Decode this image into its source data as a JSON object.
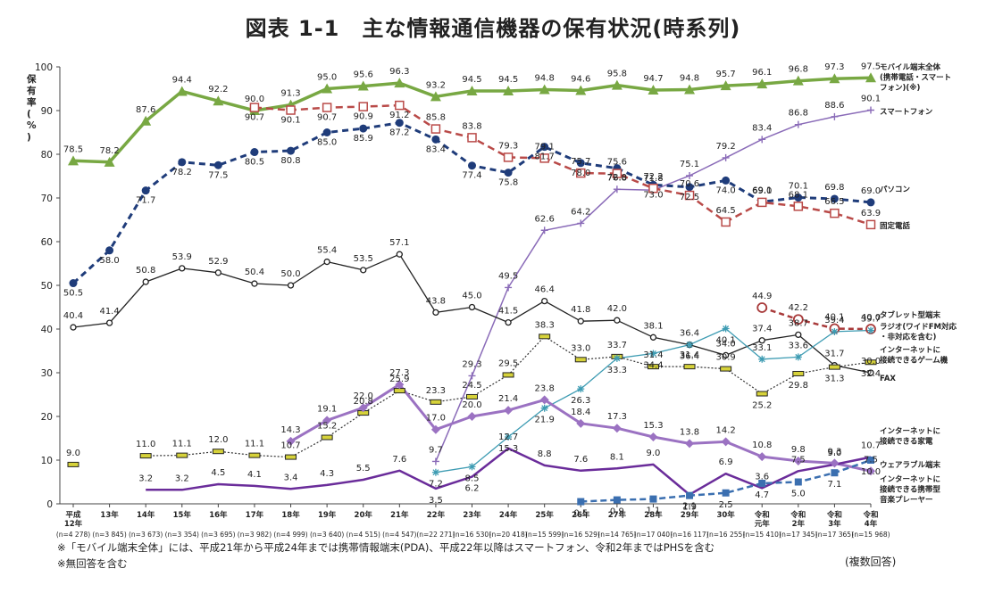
{
  "title": "図表 1-1　主な情報通信機器の保有状況(時系列)",
  "notes": [
    "※「モバイル端末全体」には、平成21年から平成24年までは携帯情報端末(PDA)、平成22年以降はスマートフォン、令和2年まではPHSを含む",
    "※無回答を含む"
  ],
  "multi_answer": "(複数回答)",
  "chart_data": {
    "type": "line",
    "ylabel": "保有率(%)",
    "ylim": [
      0,
      100
    ],
    "yticks": [
      0,
      10,
      20,
      30,
      40,
      50,
      60,
      70,
      80,
      90,
      100
    ],
    "grid": false,
    "legend": "inline-right",
    "categories": [
      {
        "year": [
          "平成",
          "12年"
        ],
        "n": "(n=4 278)"
      },
      {
        "year": [
          "13年"
        ],
        "n": "(n=3 845)"
      },
      {
        "year": [
          "14年"
        ],
        "n": "(n=3 673)"
      },
      {
        "year": [
          "15年"
        ],
        "n": "(n=3 354)"
      },
      {
        "year": [
          "16年"
        ],
        "n": "(n=3 695)"
      },
      {
        "year": [
          "17年"
        ],
        "n": "(n=3 982)"
      },
      {
        "year": [
          "18年"
        ],
        "n": "(n=4 999)"
      },
      {
        "year": [
          "19年"
        ],
        "n": "(n=3 640)"
      },
      {
        "year": [
          "20年"
        ],
        "n": "(n=4 515)"
      },
      {
        "year": [
          "21年"
        ],
        "n": "(n=4 547)"
      },
      {
        "year": [
          "22年"
        ],
        "n": "(n=22 271)"
      },
      {
        "year": [
          "23年"
        ],
        "n": "(n=16 530)"
      },
      {
        "year": [
          "24年"
        ],
        "n": "(n=20 418)"
      },
      {
        "year": [
          "25年"
        ],
        "n": "(n=15 599)"
      },
      {
        "year": [
          "26年"
        ],
        "n": "(n=16 529)"
      },
      {
        "year": [
          "27年"
        ],
        "n": "(n=14 765)"
      },
      {
        "year": [
          "28年"
        ],
        "n": "(n=17 040)"
      },
      {
        "year": [
          "29年"
        ],
        "n": "(n=16 117)"
      },
      {
        "year": [
          "30年"
        ],
        "n": "(n=16 255)"
      },
      {
        "year": [
          "令和",
          "元年"
        ],
        "n": "(n=15 410)"
      },
      {
        "year": [
          "令和",
          "2年"
        ],
        "n": "(n=17 345)"
      },
      {
        "year": [
          "令和",
          "3年"
        ],
        "n": "(n=17 365)"
      },
      {
        "year": [
          "令和",
          "4年"
        ],
        "n": "(n=15 968)"
      }
    ],
    "series": [
      {
        "name": [
          "モバイル端末全体",
          "(携帯電話・スマート",
          "フォン)(※)"
        ],
        "color": "#78a843",
        "dash": "",
        "width": 3.5,
        "marker": "triangle",
        "values": [
          78.5,
          78.2,
          87.6,
          94.4,
          92.2,
          90.0,
          91.3,
          95.0,
          95.6,
          96.3,
          93.2,
          94.5,
          94.5,
          94.8,
          94.6,
          95.8,
          94.7,
          94.8,
          95.7,
          96.1,
          96.8,
          97.3,
          97.5
        ]
      },
      {
        "name": [
          "スマートフォン"
        ],
        "color": "#8a6bb8",
        "dash": "",
        "width": 1.5,
        "marker": "plus",
        "values": [
          null,
          null,
          null,
          null,
          null,
          null,
          null,
          null,
          null,
          null,
          9.7,
          29.3,
          49.5,
          62.6,
          64.2,
          72.0,
          71.8,
          75.1,
          79.2,
          83.4,
          86.8,
          88.6,
          90.1
        ]
      },
      {
        "name": [
          "パソコン"
        ],
        "color": "#1f3c7a",
        "dash": "7 5",
        "width": 3,
        "marker": "dot",
        "values": [
          50.5,
          58.0,
          71.7,
          78.2,
          77.5,
          80.5,
          80.8,
          85.0,
          85.9,
          87.2,
          83.4,
          77.4,
          75.8,
          81.7,
          78.0,
          76.8,
          73.0,
          72.5,
          74.0,
          69.1,
          70.1,
          69.8,
          69.0
        ]
      },
      {
        "name": [
          "固定電話"
        ],
        "color": "#b94a48",
        "dash": "8 5",
        "width": 2.5,
        "marker": "square",
        "values": [
          null,
          null,
          null,
          null,
          null,
          90.7,
          90.1,
          90.7,
          90.9,
          91.2,
          85.8,
          83.8,
          79.3,
          79.1,
          75.7,
          75.6,
          72.2,
          70.6,
          64.5,
          69.0,
          68.1,
          66.5,
          63.9
        ]
      },
      {
        "name": [
          "タブレット型端末"
        ],
        "color": "#222222",
        "dash": "",
        "width": 1.3,
        "marker": "circle",
        "values": [
          40.4,
          41.4,
          50.8,
          53.9,
          52.9,
          50.4,
          50.0,
          55.4,
          53.5,
          57.1,
          43.8,
          45.0,
          41.5,
          46.4,
          41.8,
          42.0,
          38.1,
          36.4,
          34.0,
          37.4,
          38.7,
          31.7,
          30.0
        ]
      },
      {
        "name": [
          "ラジオ(ワイドFM対応",
          "・非対応を含む)"
        ],
        "color": "#a83a3a",
        "dash": "6 4",
        "width": 2.5,
        "marker": "circlebig",
        "values": [
          null,
          null,
          null,
          null,
          null,
          null,
          null,
          null,
          null,
          null,
          null,
          null,
          null,
          null,
          null,
          null,
          null,
          null,
          null,
          44.9,
          42.2,
          40.1,
          40.0
        ]
      },
      {
        "name": [
          "インターネットに",
          "接続できるゲーム機"
        ],
        "color": "#333333",
        "dash": "2 2",
        "width": 1.2,
        "marker": "bar",
        "values": [
          9.0,
          null,
          11.0,
          11.1,
          12.0,
          11.1,
          10.7,
          15.2,
          20.8,
          25.9,
          23.3,
          24.5,
          29.5,
          38.3,
          33.0,
          33.7,
          31.4,
          31.4,
          30.9,
          25.2,
          29.8,
          31.3,
          32.4
        ]
      },
      {
        "name": [
          "FAX"
        ],
        "color": "#3e9cb3",
        "dash": "",
        "width": 1.3,
        "marker": "star",
        "values": [
          null,
          null,
          null,
          null,
          null,
          null,
          null,
          null,
          null,
          null,
          7.2,
          8.5,
          15.3,
          21.9,
          26.3,
          33.3,
          34.4,
          36.4,
          40.1,
          33.1,
          33.6,
          39.4,
          39.7
        ]
      },
      {
        "name": [
          "インターネットに",
          "接続できる家電"
        ],
        "color": "#9b72c2",
        "dash": "",
        "width": 3,
        "marker": "diamond",
        "values": [
          null,
          null,
          null,
          null,
          null,
          null,
          14.3,
          19.1,
          22.0,
          27.3,
          17.0,
          20.0,
          21.4,
          23.8,
          18.4,
          17.3,
          15.3,
          13.8,
          14.2,
          10.8,
          9.8,
          9.3,
          7.5
        ]
      },
      {
        "name": [
          "ウェアラブル端末"
        ],
        "color": "#6a2c9a",
        "dash": "",
        "width": 2.5,
        "marker": "none",
        "values": [
          null,
          null,
          3.2,
          3.2,
          4.5,
          4.1,
          3.4,
          4.3,
          5.5,
          7.6,
          3.5,
          6.2,
          12.7,
          8.8,
          7.6,
          8.1,
          9.0,
          2.1,
          6.9,
          3.6,
          7.5,
          9.0,
          10.7
        ]
      },
      {
        "name": [
          "インターネットに",
          "接続できる携帯型",
          "音楽プレーヤー"
        ],
        "color": "#3b6fb0",
        "dash": "7 4",
        "width": 2.5,
        "marker": "sq",
        "values": [
          null,
          null,
          null,
          null,
          null,
          null,
          null,
          null,
          null,
          null,
          null,
          null,
          null,
          null,
          0.5,
          0.9,
          1.1,
          1.9,
          2.5,
          4.7,
          5.0,
          7.1,
          10.0
        ]
      }
    ]
  }
}
